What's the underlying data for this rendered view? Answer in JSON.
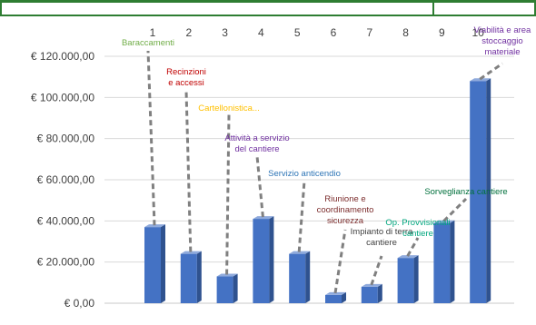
{
  "chart_data": {
    "type": "bar",
    "categories": [
      "1",
      "2",
      "3",
      "4",
      "5",
      "6",
      "7",
      "8",
      "9",
      "10"
    ],
    "values": [
      37000,
      24000,
      13000,
      41000,
      24000,
      4000,
      8000,
      22000,
      39000,
      108000
    ],
    "ylim": [
      0,
      120000
    ],
    "y_ticks": [
      "€ 0,00",
      "€ 20.000,00",
      "€ 40.000,00",
      "€ 60.000,00",
      "€ 80.000,00",
      "€ 100.000,00",
      "€ 120.000,00"
    ],
    "grid": true,
    "bar_color": "#4472c4",
    "annotations": [
      {
        "text": [
          "Baraccamenti"
        ],
        "color": "#70ad47"
      },
      {
        "text": [
          "Recinzioni",
          "e accessi"
        ],
        "color": "#c00000"
      },
      {
        "text": [
          "Cartellonistica..."
        ],
        "color": "#ffc000"
      },
      {
        "text": [
          "Attività a servizio",
          "del cantiere"
        ],
        "color": "#7030a0"
      },
      {
        "text": [
          "Servizio anticendio"
        ],
        "color": "#2e75b6"
      },
      {
        "text": [
          "Riunione e",
          "coordinamento",
          "sicurezza"
        ],
        "color": "#7b2c2c"
      },
      {
        "text": [
          "Impianto di terra",
          "cantiere"
        ],
        "color": "#404040"
      },
      {
        "text": [
          "Op. Provvisionali",
          "cantiere"
        ],
        "color": "#00a67e"
      },
      {
        "text": [
          "Sorveglianza cantiere"
        ],
        "color": "#00703c"
      },
      {
        "text": [
          "Viabilità e area",
          "stoccaggio",
          "materiale"
        ],
        "color": "#7030a0"
      }
    ]
  }
}
